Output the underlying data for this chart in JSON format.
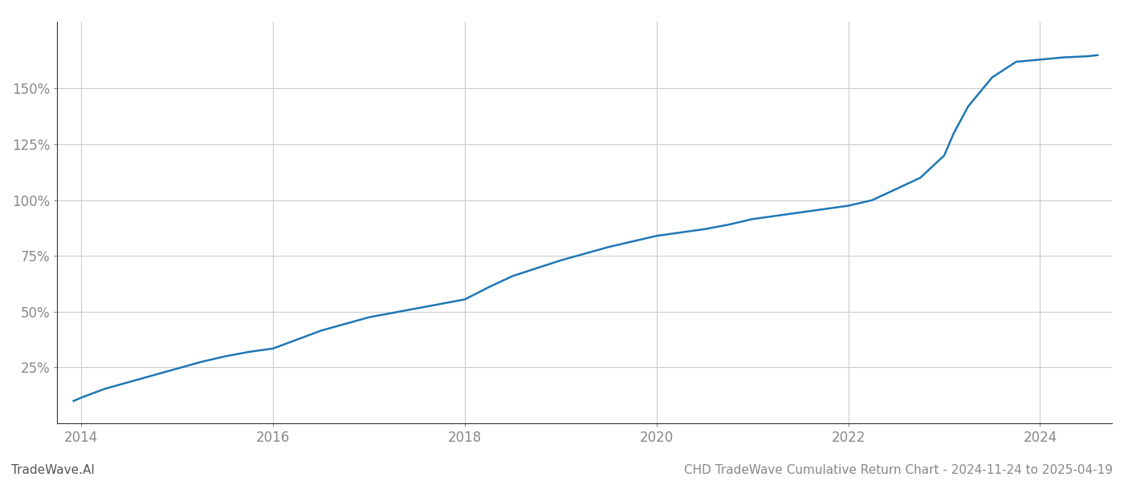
{
  "title": "CHD TradeWave Cumulative Return Chart - 2024-11-24 to 2025-04-19",
  "watermark": "TradeWave.AI",
  "line_color": "#1f77b4",
  "background_color": "#ffffff",
  "grid_color": "#cccccc",
  "x_ticks": [
    2014,
    2016,
    2018,
    2020,
    2022,
    2024
  ],
  "y_ticks": [
    0.25,
    0.5,
    0.75,
    1.0,
    1.25,
    1.5
  ],
  "y_tick_labels": [
    "25%",
    "50%",
    "75%",
    "100%",
    "125%",
    "150%"
  ],
  "data_points": {
    "years": [
      2013.92,
      2014.0,
      2014.25,
      2014.5,
      2014.75,
      2015.0,
      2015.25,
      2015.5,
      2015.75,
      2016.0,
      2016.25,
      2016.5,
      2016.75,
      2017.0,
      2017.25,
      2017.5,
      2017.75,
      2018.0,
      2018.25,
      2018.5,
      2018.75,
      2019.0,
      2019.25,
      2019.5,
      2019.75,
      2020.0,
      2020.25,
      2020.5,
      2020.75,
      2021.0,
      2021.25,
      2021.5,
      2021.75,
      2022.0,
      2022.25,
      2022.5,
      2022.75,
      2023.0,
      2023.1,
      2023.25,
      2023.5,
      2023.75,
      2024.0,
      2024.25,
      2024.5,
      2024.6
    ],
    "values": [
      0.1,
      0.115,
      0.155,
      0.185,
      0.215,
      0.245,
      0.275,
      0.3,
      0.32,
      0.335,
      0.375,
      0.415,
      0.445,
      0.475,
      0.495,
      0.515,
      0.535,
      0.555,
      0.61,
      0.66,
      0.695,
      0.73,
      0.76,
      0.79,
      0.815,
      0.84,
      0.855,
      0.87,
      0.89,
      0.915,
      0.93,
      0.945,
      0.96,
      0.975,
      1.0,
      1.05,
      1.1,
      1.2,
      1.3,
      1.42,
      1.55,
      1.62,
      1.63,
      1.64,
      1.645,
      1.65
    ]
  },
  "xlim": [
    2013.75,
    2024.75
  ],
  "ylim": [
    0.0,
    1.8
  ],
  "line_width": 1.8,
  "title_fontsize": 11,
  "tick_fontsize": 12,
  "watermark_fontsize": 11,
  "spine_color": "#333333"
}
